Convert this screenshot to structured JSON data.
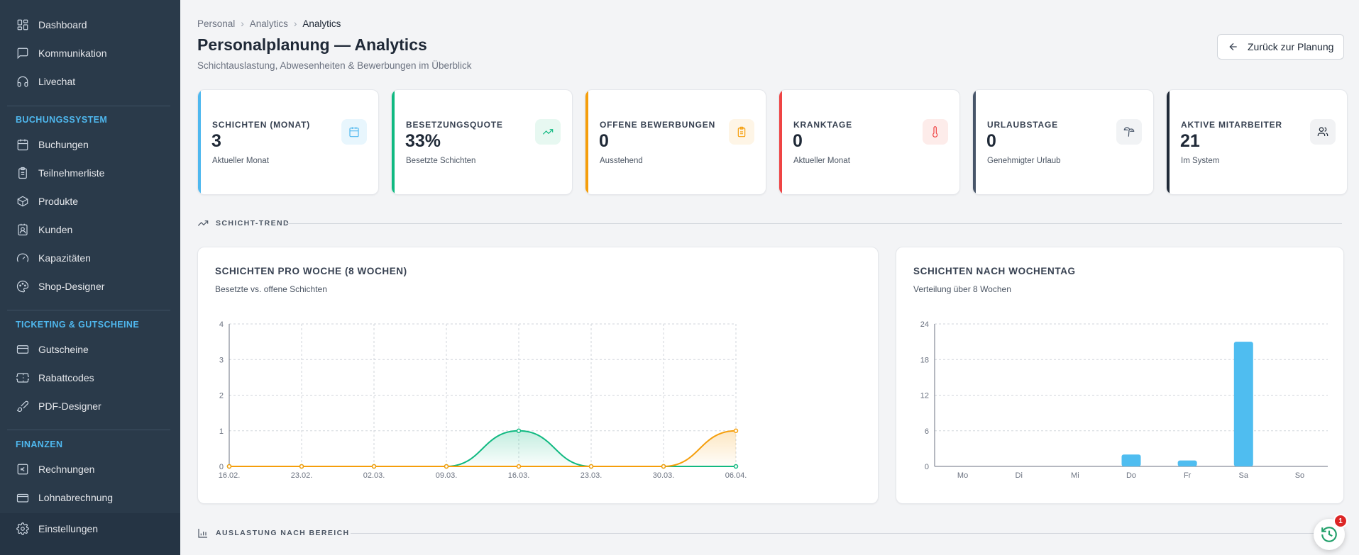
{
  "sidebar": {
    "top_items": [
      {
        "label": "Dashboard",
        "icon": "layout-dashboard-icon"
      },
      {
        "label": "Kommunikation",
        "icon": "message-square-icon"
      },
      {
        "label": "Livechat",
        "icon": "headset-icon"
      }
    ],
    "sections": [
      {
        "title": "BUCHUNGSSYSTEM",
        "items": [
          {
            "label": "Buchungen",
            "icon": "calendar-icon"
          },
          {
            "label": "Teilnehmerliste",
            "icon": "clipboard-list-icon"
          },
          {
            "label": "Produkte",
            "icon": "package-icon"
          },
          {
            "label": "Kunden",
            "icon": "contact-icon"
          },
          {
            "label": "Kapazitäten",
            "icon": "gauge-icon"
          },
          {
            "label": "Shop-Designer",
            "icon": "palette-icon"
          }
        ]
      },
      {
        "title": "TICKETING & GUTSCHEINE",
        "items": [
          {
            "label": "Gutscheine",
            "icon": "credit-card-icon"
          },
          {
            "label": "Rabattcodes",
            "icon": "ticket-icon"
          },
          {
            "label": "PDF-Designer",
            "icon": "brush-icon"
          }
        ]
      },
      {
        "title": "FINANZEN",
        "items": [
          {
            "label": "Rechnungen",
            "icon": "receipt-euro-icon"
          },
          {
            "label": "Lohnabrechnung",
            "icon": "wallet-icon"
          }
        ]
      }
    ],
    "settings_label": "Einstellungen"
  },
  "breadcrumb": [
    "Personal",
    "Analytics",
    "Analytics"
  ],
  "page": {
    "title": "Personalplanung — Analytics",
    "subtitle": "Schichtauslastung, Abwesenheiten & Bewerbungen im Überblick",
    "back_button": "Zurück zur Planung"
  },
  "kpis": [
    {
      "label": "SCHICHTEN (MONAT)",
      "value": "3",
      "sub": "Aktueller Monat",
      "icon": "calendar-icon",
      "color": "#4fb8ef",
      "tint": "#e8f6fd"
    },
    {
      "label": "BESETZUNGSQUOTE",
      "value": "33%",
      "sub": "Besetzte Schichten",
      "icon": "trending-up-icon",
      "color": "#10b981",
      "tint": "#e7f8f1"
    },
    {
      "label": "OFFENE BEWERBUNGEN",
      "value": "0",
      "sub": "Ausstehend",
      "icon": "clipboard-icon",
      "color": "#f59e0b",
      "tint": "#fef5e6"
    },
    {
      "label": "KRANKTAGE",
      "value": "0",
      "sub": "Aktueller Monat",
      "icon": "thermometer-icon",
      "color": "#ef4444",
      "tint": "#fdecea"
    },
    {
      "label": "URLAUBSTAGE",
      "value": "0",
      "sub": "Genehmigter Urlaub",
      "icon": "palm-tree-icon",
      "color": "#475569",
      "tint": "#f1f3f5"
    },
    {
      "label": "AKTIVE MITARBEITER",
      "value": "21",
      "sub": "Im System",
      "icon": "users-icon",
      "color": "#1f2937",
      "tint": "#f1f2f4"
    }
  ],
  "sections": {
    "trend": "SCHICHT-TREND",
    "utilization": "AUSLASTUNG NACH BEREICH"
  },
  "cards": {
    "weekly": {
      "title": "SCHICHTEN PRO WOCHE (8 WOCHEN)",
      "subtitle": "Besetzte vs. offene Schichten"
    },
    "weekday": {
      "title": "SCHICHTEN NACH WOCHENTAG",
      "subtitle": "Verteilung über 8 Wochen"
    }
  },
  "chart_data": [
    {
      "type": "line",
      "x": [
        "16.02.",
        "23.02.",
        "02.03.",
        "09.03.",
        "16.03.",
        "23.03.",
        "30.03.",
        "06.04."
      ],
      "series": [
        {
          "values": [
            0,
            0,
            0,
            0,
            1,
            0,
            0,
            0
          ],
          "color": "#10b981"
        },
        {
          "values": [
            0,
            0,
            0,
            0,
            0,
            0,
            0,
            1
          ],
          "color": "#f59e0b"
        }
      ],
      "ylim": [
        0,
        4
      ],
      "yticks": [
        0,
        1,
        2,
        3,
        4
      ],
      "grid": true
    },
    {
      "type": "bar",
      "categories": [
        "Mo",
        "Di",
        "Mi",
        "Do",
        "Fr",
        "Sa",
        "So"
      ],
      "values": [
        0,
        0,
        0,
        2,
        1,
        21,
        0
      ],
      "ylim": [
        0,
        24
      ],
      "yticks": [
        0,
        6,
        12,
        18,
        24
      ],
      "color": "#4fbdf0",
      "grid": true
    }
  ],
  "notifications": {
    "count": "1",
    "icon": "history-icon"
  }
}
